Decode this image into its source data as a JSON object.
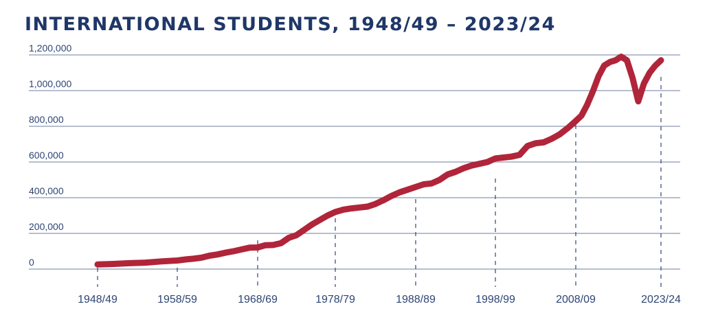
{
  "colors": {
    "title": "#1f3768",
    "axis_text": "#2d4573",
    "gridline": "#6c7c9c",
    "guide": "#2d4573",
    "series": "#b0253a"
  },
  "chart_data": {
    "type": "line",
    "title": "INTERNATIONAL STUDENTS, 1948/49 – 2023/24",
    "xlabel": "",
    "ylabel": "",
    "ylim": [
      0,
      1200000
    ],
    "grid": true,
    "legend": "none",
    "y_ticks": [
      {
        "value": 0,
        "label": "0"
      },
      {
        "value": 200000,
        "label": "200,000"
      },
      {
        "value": 400000,
        "label": "400,000"
      },
      {
        "value": 600000,
        "label": "600,000"
      },
      {
        "value": 800000,
        "label": "800,000"
      },
      {
        "value": 1000000,
        "label": "1,000,000"
      },
      {
        "value": 1200000,
        "label": "1,200,000"
      }
    ],
    "x_ticks": [
      {
        "label": "1948/49",
        "year": 1948
      },
      {
        "label": "1958/59",
        "year": 1958
      },
      {
        "label": "1968/69",
        "year": 1968
      },
      {
        "label": "1978/79",
        "year": 1978
      },
      {
        "label": "1988/89",
        "year": 1988
      },
      {
        "label": "1998/99",
        "year": 1998
      },
      {
        "label": "2008/09",
        "year": 2008
      },
      {
        "label": "2023/24",
        "year": 2023
      }
    ],
    "series": [
      {
        "x": [
          1948,
          1950,
          1952,
          1954,
          1956,
          1958,
          1959,
          1960,
          1961,
          1962,
          1963,
          1964,
          1965,
          1966,
          1967,
          1968,
          1969,
          1970,
          1971,
          1972,
          1973,
          1974,
          1975,
          1976,
          1977,
          1978,
          1979,
          1980,
          1981,
          1982,
          1983,
          1984,
          1985,
          1986,
          1987,
          1988,
          1989,
          1990,
          1991,
          1992,
          1993,
          1994,
          1995,
          1996,
          1997,
          1998,
          1999,
          2000,
          2001,
          2002,
          2003,
          2004,
          2005,
          2006,
          2007,
          2008,
          2009,
          2010,
          2011,
          2012,
          2013,
          2014,
          2015,
          2016,
          2017,
          2018,
          2019,
          2020,
          2021,
          2022,
          2023
        ],
        "y": [
          26000,
          29000,
          33000,
          36000,
          43000,
          48000,
          54000,
          58000,
          64000,
          75000,
          82000,
          92000,
          100000,
          110000,
          120000,
          121000,
          134000,
          135000,
          145000,
          175000,
          190000,
          220000,
          250000,
          275000,
          300000,
          320000,
          333000,
          340000,
          345000,
          350000,
          365000,
          386000,
          410000,
          430000,
          445000,
          460000,
          475000,
          480000,
          500000,
          530000,
          545000,
          565000,
          580000,
          590000,
          600000,
          620000,
          625000,
          630000,
          640000,
          690000,
          705000,
          710000,
          730000,
          755000,
          790000,
          830000,
          860000,
          920000,
          995000,
          1080000,
          1140000,
          1160000,
          1170000,
          1190000,
          1170000,
          1070000,
          940000,
          1040000,
          1100000,
          1140000,
          1170000
        ]
      }
    ]
  }
}
